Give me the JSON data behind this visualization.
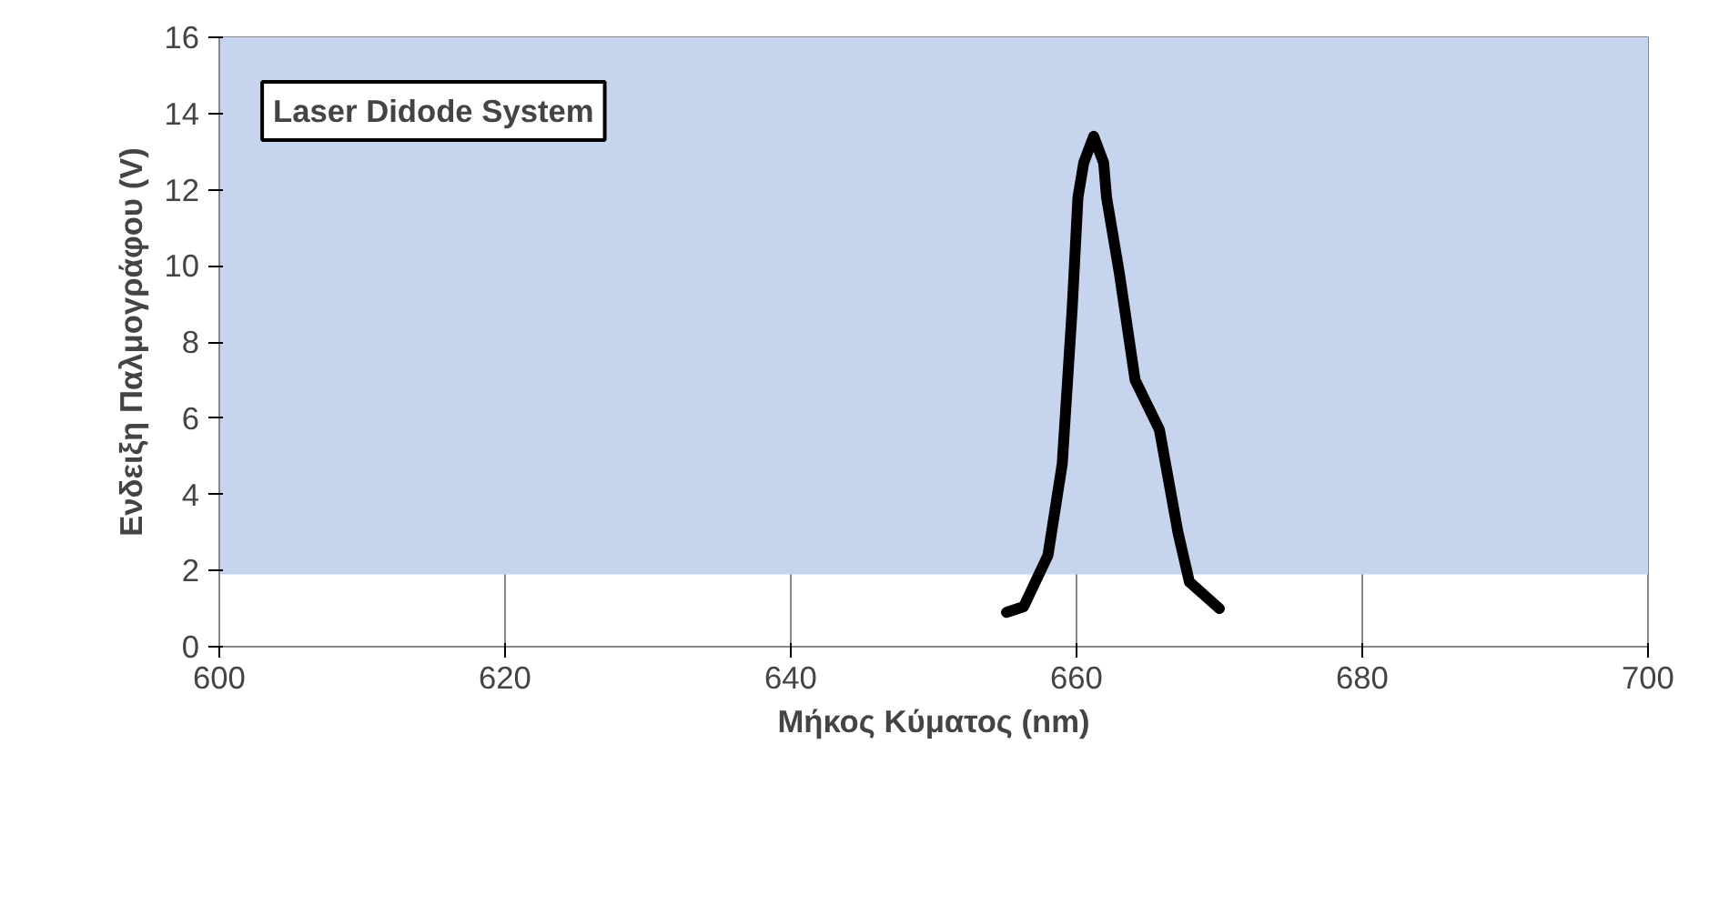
{
  "chart_data": {
    "type": "line",
    "xlabel": "Μήκος Κύματος (nm)",
    "ylabel": "Ενδειξη Παλμογράφου (V)",
    "annotations": [
      "Laser Didode System"
    ],
    "x": [
      655.1,
      656.3,
      658.0,
      659.0,
      659.7,
      660.1,
      660.5,
      661.2,
      661.9,
      662.1,
      663.0,
      664.1,
      665.8,
      667.1,
      667.9,
      670.0
    ],
    "series": [
      {
        "color": "#000000",
        "values": [
          0.9,
          1.05,
          2.4,
          4.8,
          8.9,
          11.8,
          12.7,
          13.4,
          12.7,
          11.8,
          9.8,
          7.0,
          5.7,
          3.0,
          1.7,
          1.0
        ]
      }
    ],
    "xlim": [
      600,
      700
    ],
    "xticks": [
      600,
      620,
      640,
      660,
      680,
      700
    ],
    "ylim": [
      0,
      16
    ],
    "yticks": [
      0,
      2,
      4,
      6,
      8,
      10,
      12,
      14,
      16
    ],
    "grid": "x",
    "marker": "none",
    "line_style": "solid",
    "bands": [
      {
        "axis": "y",
        "from": 1.9,
        "to": 16,
        "color": "#c6d4ee"
      }
    ]
  }
}
